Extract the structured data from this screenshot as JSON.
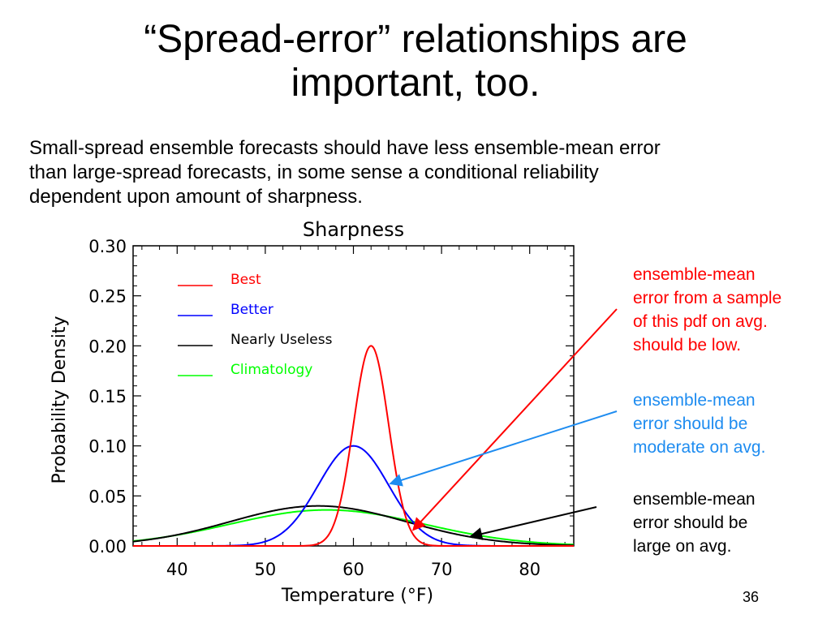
{
  "slide": {
    "title_line1": "“Spread-error” relationships are",
    "title_line2": "important, too.",
    "subtitle_line1": "Small-spread ensemble forecasts should have less ensemble-mean error",
    "subtitle_line2": "than large-spread forecasts, in some sense a conditional reliability",
    "subtitle_line3": "dependent upon amount of sharpness.",
    "page_number": "36"
  },
  "annotations": [
    {
      "lines": [
        "ensemble-mean",
        "error from a sample",
        "of this pdf on avg.",
        "should be low."
      ],
      "color": "#ff0000",
      "points_to": "Best"
    },
    {
      "lines": [
        "ensemble-mean",
        "error should be",
        "moderate on avg."
      ],
      "color": "#1e8cf0",
      "points_to": "Better"
    },
    {
      "lines": [
        "ensemble-mean",
        "error should be",
        "large on avg."
      ],
      "color": "#000000",
      "points_to": "Nearly Useless"
    }
  ],
  "chart_data": {
    "type": "line",
    "title": "Sharpness",
    "xlabel": "Temperature (°F)",
    "ylabel": "Probability Density",
    "xlim": [
      35,
      85
    ],
    "ylim": [
      0,
      0.3
    ],
    "xticks": [
      "40",
      "50",
      "60",
      "70",
      "80"
    ],
    "xtick_values": [
      40,
      50,
      60,
      70,
      80
    ],
    "yticks": [
      "0.00",
      "0.05",
      "0.10",
      "0.15",
      "0.20",
      "0.25",
      "0.30"
    ],
    "ytick_values": [
      0,
      0.05,
      0.1,
      0.15,
      0.2,
      0.25,
      0.3
    ],
    "grid": false,
    "legend_position": "top-left",
    "series": [
      {
        "name": "Best",
        "color": "#ff0000",
        "distribution": "normal",
        "mean": 62,
        "std": 2.0,
        "peak": 0.2
      },
      {
        "name": "Better",
        "color": "#0000ff",
        "distribution": "normal",
        "mean": 60,
        "std": 4.0,
        "peak": 0.1
      },
      {
        "name": "Nearly Useless",
        "color": "#000000",
        "distribution": "normal",
        "mean": 56,
        "std": 10.0,
        "peak": 0.04
      },
      {
        "name": "Climatology",
        "color": "#00ff00",
        "distribution": "normal",
        "mean": 57,
        "std": 11.0,
        "peak": 0.036
      }
    ]
  }
}
